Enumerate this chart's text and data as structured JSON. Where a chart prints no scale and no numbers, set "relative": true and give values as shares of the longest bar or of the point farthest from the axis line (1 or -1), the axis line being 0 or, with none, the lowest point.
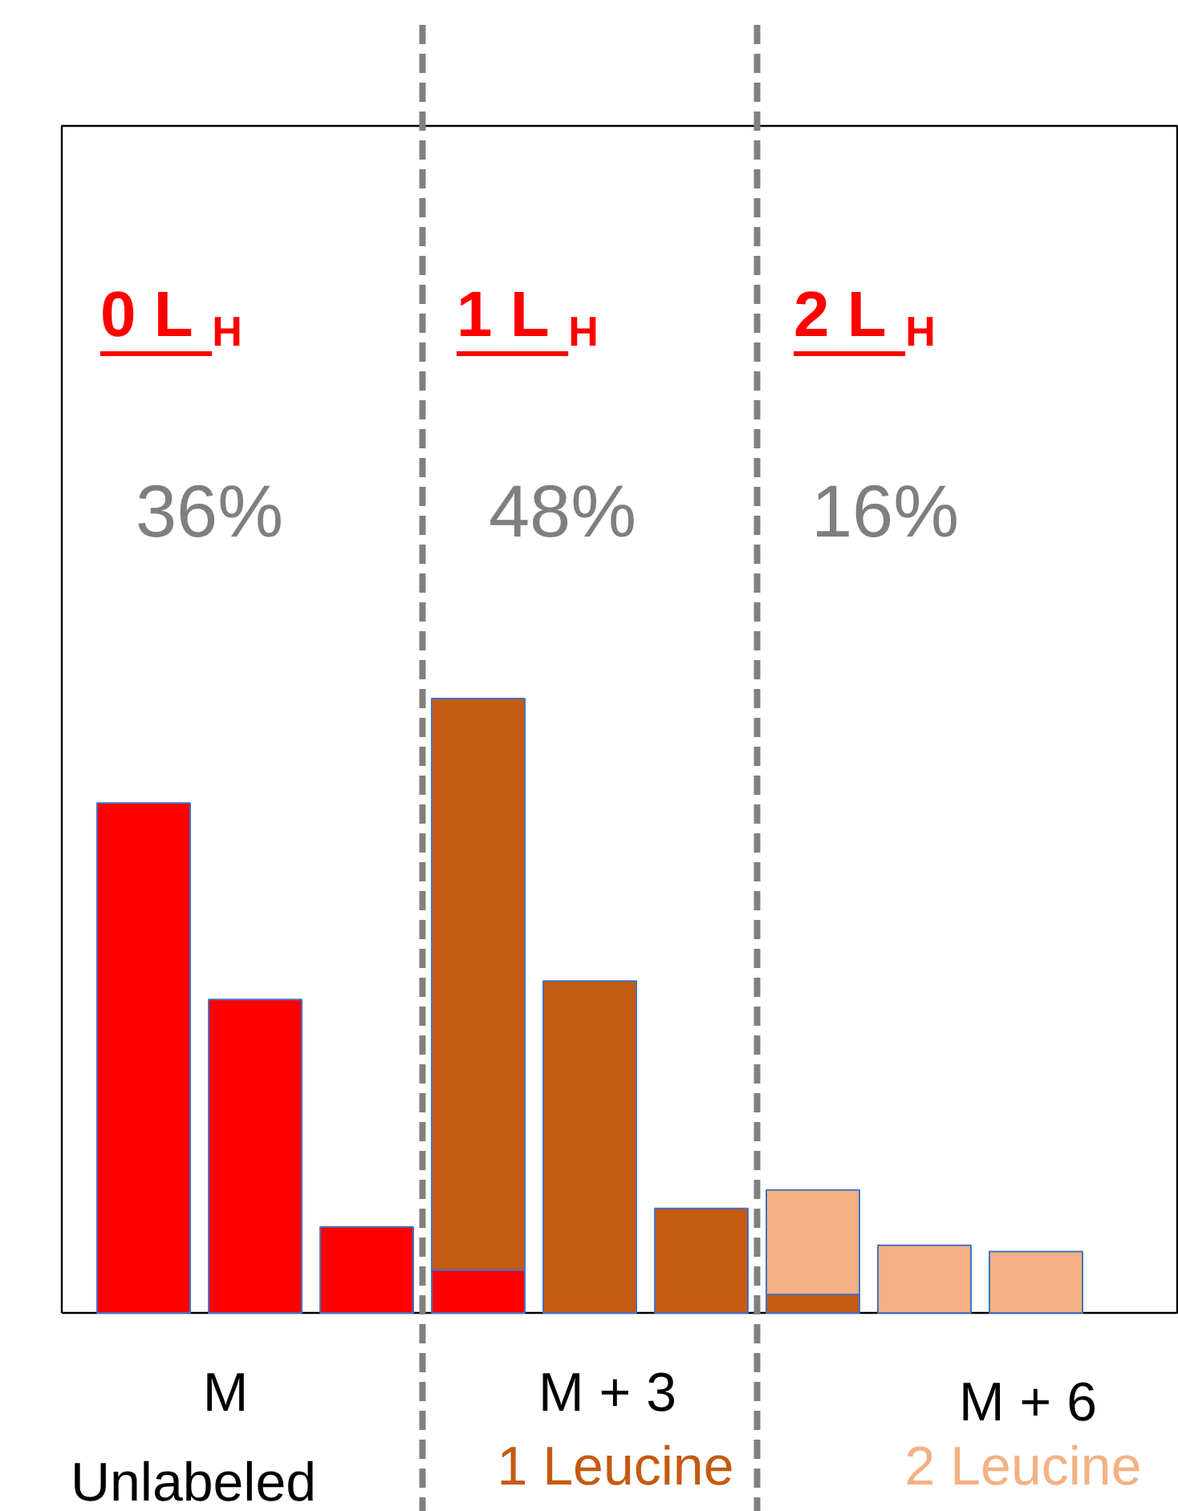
{
  "chart_data": {
    "type": "bar",
    "relative": true,
    "stacked": true,
    "categories": [
      null,
      null,
      null,
      null,
      null,
      null,
      null,
      null,
      null
    ],
    "series": [
      {
        "color": "#ff0000",
        "values": [
          0.83,
          0.51,
          0.14,
          0.07,
          null,
          null,
          null,
          null,
          null
        ]
      },
      {
        "color": "#c55a11",
        "values": [
          null,
          null,
          null,
          0.93,
          0.54,
          0.17,
          0.03,
          null,
          null
        ]
      },
      {
        "color": "#f4b183",
        "values": [
          null,
          null,
          null,
          null,
          null,
          null,
          0.17,
          0.11,
          0.1
        ]
      }
    ],
    "annotations": [
      "0 L$_{H}$",
      "1 L$_{H}$",
      "2 L$_{H}$",
      "36%",
      "48%",
      "16%",
      "M",
      "Unlabeled",
      "M + 3",
      "1 Leucine",
      "M + 6",
      "2 Leucine"
    ]
  }
}
